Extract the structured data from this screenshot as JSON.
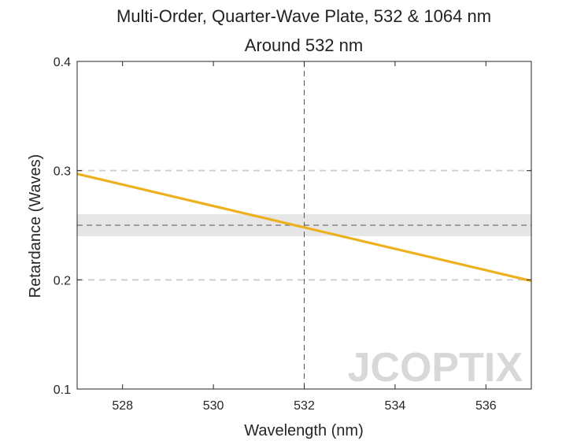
{
  "chart_data": {
    "type": "line",
    "title": "Multi-Order, Quarter-Wave Plate, 532 & 1064 nm",
    "subtitle": "Around 532 nm",
    "xlabel": "Wavelength (nm)",
    "ylabel": "Retardance (Waves)",
    "xlim": [
      527,
      537
    ],
    "ylim": [
      0.1,
      0.4
    ],
    "xticks": [
      528,
      530,
      532,
      534,
      536
    ],
    "yticks": [
      0.1,
      0.2,
      0.3,
      0.4
    ],
    "ytick_labels": [
      "0.1",
      "0.2",
      "0.3",
      "0.4"
    ],
    "series": [
      {
        "x": [
          527,
          537
        ],
        "y": [
          0.297,
          0.199
        ],
        "color": "#EDB120"
      }
    ],
    "reference_lines": {
      "vertical_x": 532,
      "horizontal_y": 0.25,
      "tolerance_band": [
        0.24,
        0.26
      ],
      "dashed_gridlines_y": [
        0.2,
        0.3
      ]
    },
    "grid": false,
    "colors": {
      "line": "#EDB120",
      "band": "#e6e6e6",
      "axis": "#262626"
    }
  },
  "watermark": {
    "text": "JCOPTIX"
  }
}
